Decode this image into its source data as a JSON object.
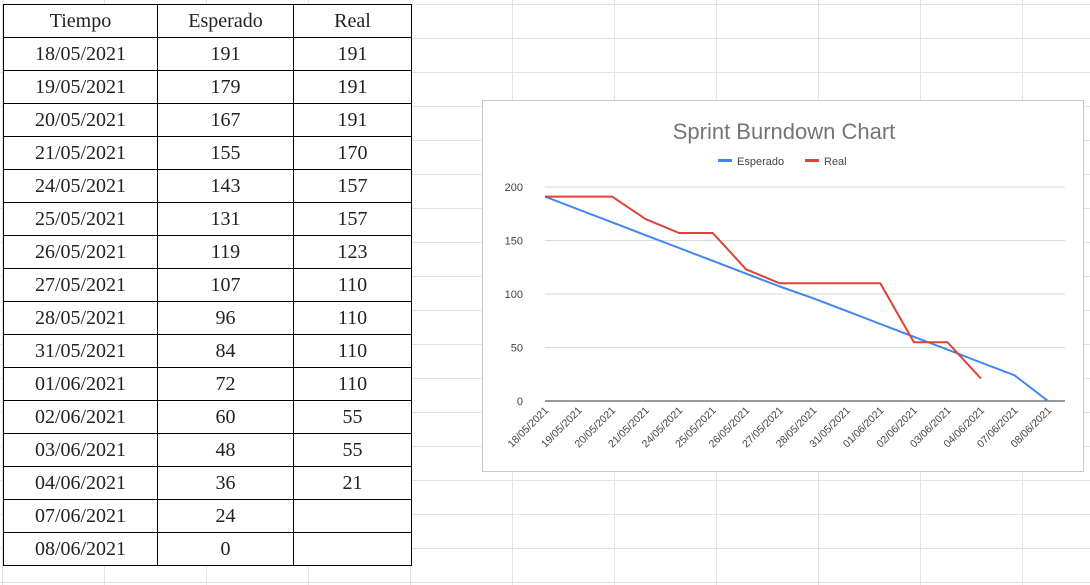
{
  "table": {
    "headers": [
      "Tiempo",
      "Esperado",
      "Real"
    ],
    "rows": [
      [
        "18/05/2021",
        "191",
        "191"
      ],
      [
        "19/05/2021",
        "179",
        "191"
      ],
      [
        "20/05/2021",
        "167",
        "191"
      ],
      [
        "21/05/2021",
        "155",
        "170"
      ],
      [
        "24/05/2021",
        "143",
        "157"
      ],
      [
        "25/05/2021",
        "131",
        "157"
      ],
      [
        "26/05/2021",
        "119",
        "123"
      ],
      [
        "27/05/2021",
        "107",
        "110"
      ],
      [
        "28/05/2021",
        "96",
        "110"
      ],
      [
        "31/05/2021",
        "84",
        "110"
      ],
      [
        "01/06/2021",
        "72",
        "110"
      ],
      [
        "02/06/2021",
        "60",
        "55"
      ],
      [
        "03/06/2021",
        "48",
        "55"
      ],
      [
        "04/06/2021",
        "36",
        "21"
      ],
      [
        "07/06/2021",
        "24",
        ""
      ],
      [
        "08/06/2021",
        "0",
        ""
      ]
    ]
  },
  "chart_data": {
    "type": "line",
    "title": "Sprint Burndown Chart",
    "categories": [
      "18/05/2021",
      "19/05/2021",
      "20/05/2021",
      "21/05/2021",
      "24/05/2021",
      "25/05/2021",
      "26/05/2021",
      "27/05/2021",
      "28/05/2021",
      "31/05/2021",
      "01/06/2021",
      "02/06/2021",
      "03/06/2021",
      "04/06/2021",
      "07/06/2021",
      "08/06/2021"
    ],
    "series": [
      {
        "name": "Esperado",
        "color": "#4285f4",
        "values": [
          191,
          179,
          167,
          155,
          143,
          131,
          119,
          107,
          96,
          84,
          72,
          60,
          48,
          36,
          24,
          0
        ]
      },
      {
        "name": "Real",
        "color": "#db4437",
        "values": [
          191,
          191,
          191,
          170,
          157,
          157,
          123,
          110,
          110,
          110,
          110,
          55,
          55,
          21,
          null,
          null
        ]
      }
    ],
    "yticks": [
      0,
      50,
      100,
      150,
      200
    ],
    "ylim": [
      0,
      200
    ],
    "grid": true,
    "legend": "top"
  }
}
